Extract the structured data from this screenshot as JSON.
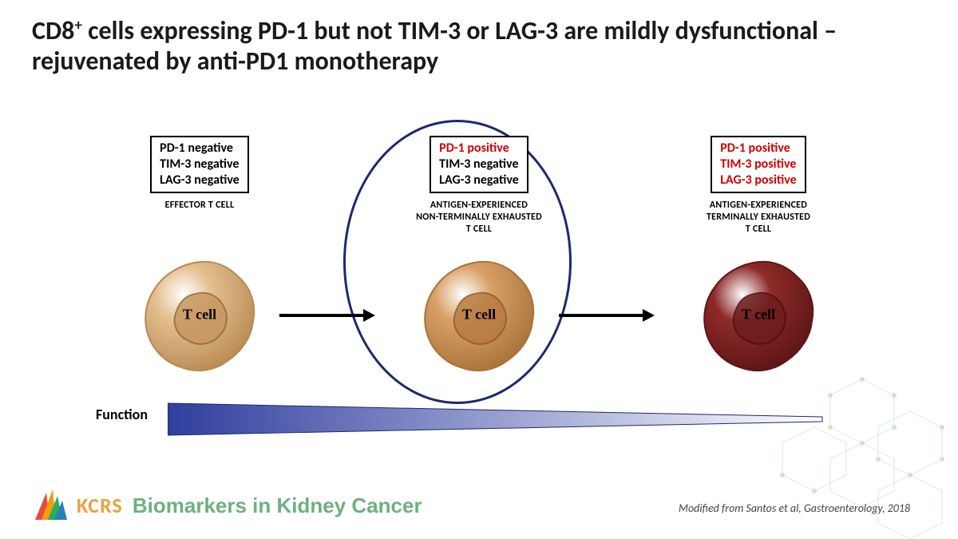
{
  "title_html": "CD8<sup>+</sup> cells expressing PD-1 but not TIM-3 or LAG-3 are mildly dysfunctional – rejuvenated by anti-PD1 monotherapy",
  "columns": [
    {
      "markers": [
        {
          "text": "PD-1 negative",
          "class": "neg"
        },
        {
          "text": "TIM-3 negative",
          "class": "neg"
        },
        {
          "text": "LAG-3 negative",
          "class": "neg"
        }
      ],
      "type_label": "EFFECTOR T CELL",
      "cell_label": "T cell",
      "cell_fill": "#e4bf8f",
      "cell_shadow": "#b88a52",
      "nuc_fill": "#c99760",
      "nuc_stroke": "#8f6a3f"
    },
    {
      "markers": [
        {
          "text": "PD-1 positive",
          "class": "pos"
        },
        {
          "text": "TIM-3 negative",
          "class": "neg"
        },
        {
          "text": "LAG-3 negative",
          "class": "neg"
        }
      ],
      "type_label": "ANTIGEN-EXPERIENCED\nNON-TERMINALLY EXHAUSTED\nT CELL",
      "cell_label": "T cell",
      "cell_fill": "#d9a066",
      "cell_shadow": "#a77338",
      "nuc_fill": "#b87b43",
      "nuc_stroke": "#8a5a2e"
    },
    {
      "markers": [
        {
          "text": "PD-1 positive",
          "class": "pos"
        },
        {
          "text": "TIM-3 positive",
          "class": "pos"
        },
        {
          "text": "LAG-3 positive",
          "class": "pos"
        }
      ],
      "type_label": "ANTIGEN-EXPERIENCED\nTERMINALLY  EXHAUSTED\nT CELL",
      "cell_label": "T cell",
      "cell_fill": "#8e2a2a",
      "cell_shadow": "#5c1515",
      "nuc_fill": "#6e1d1d",
      "nuc_stroke": "#4a1010"
    }
  ],
  "function_label": "Function",
  "function_gradient_from": "#2f3e9e",
  "function_gradient_to": "#ffffff",
  "oval_color": "#1b2a6b",
  "arrow_color": "#000000",
  "footer": {
    "kcrs": "KCRS",
    "subtitle": "Biomarkers in Kidney Cancer"
  },
  "citation": "Modified from Santos et al, Gastroenterology, 2018",
  "logo_colors": [
    "#e74c3c",
    "#f39c12",
    "#27ae60",
    "#2980b9"
  ],
  "hex_stroke": "#b8d8c0",
  "hex_dot": "#6fb07f"
}
